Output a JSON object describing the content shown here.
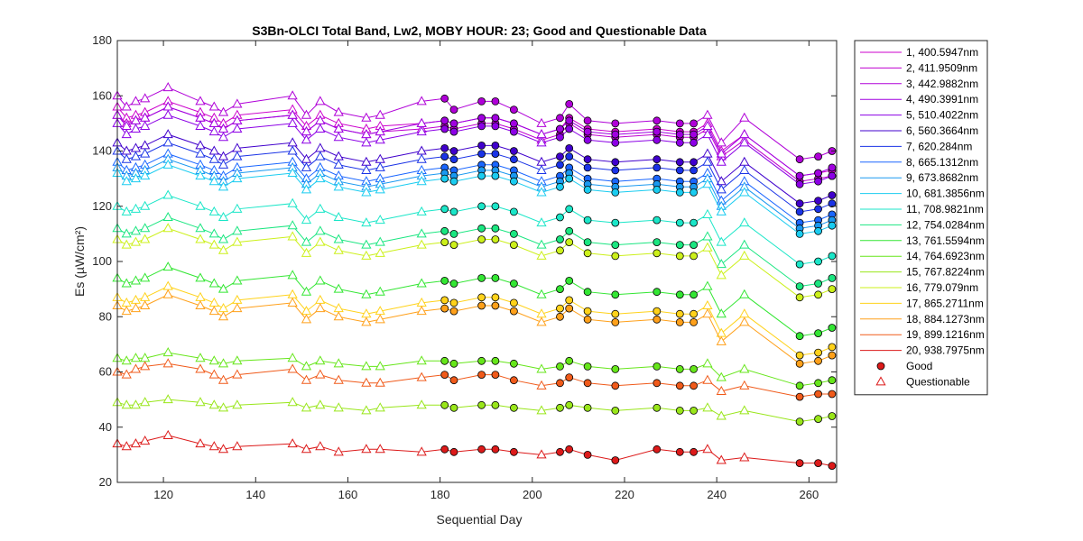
{
  "chart_data": {
    "type": "line",
    "title": "S3Bn-OLCI Total Band,  Lw2, MOBY HOUR: 23;  Good and Questionable Data",
    "xlabel": "Sequential Day",
    "ylabel": "Es (µW/cm²)",
    "xlim": [
      110,
      266
    ],
    "ylim": [
      20,
      180
    ],
    "xticks": [
      120,
      140,
      160,
      180,
      200,
      220,
      240,
      260
    ],
    "yticks": [
      20,
      40,
      60,
      80,
      100,
      120,
      140,
      160,
      180
    ],
    "grid": false,
    "legend_position": "outside-right",
    "marker_legend": [
      {
        "label": "Good",
        "marker": "circle"
      },
      {
        "label": "Questionable",
        "marker": "triangle"
      }
    ],
    "x": [
      110,
      112,
      114,
      116,
      121,
      128,
      131,
      133,
      136,
      148,
      151,
      154,
      158,
      164,
      167,
      176,
      181,
      183,
      189,
      192,
      196,
      202,
      206,
      208,
      212,
      218,
      227,
      232,
      235,
      238,
      241,
      246,
      258,
      262,
      265
    ],
    "quality": [
      "Q",
      "Q",
      "Q",
      "Q",
      "Q",
      "Q",
      "Q",
      "Q",
      "Q",
      "Q",
      "Q",
      "Q",
      "Q",
      "Q",
      "Q",
      "Q",
      "G",
      "G",
      "G",
      "G",
      "G",
      "Q",
      "G",
      "G",
      "G",
      "G",
      "G",
      "G",
      "G",
      "Q",
      "Q",
      "Q",
      "G",
      "G",
      "G"
    ],
    "series": [
      {
        "name": "1, 400.5947nm",
        "color": "#cc00cc",
        "values": [
          156,
          152,
          153,
          154,
          158,
          154,
          152,
          150,
          153,
          155,
          149,
          153,
          150,
          148,
          149,
          150,
          151,
          150,
          152,
          152,
          150,
          146,
          148,
          152,
          148,
          147,
          148,
          147,
          147,
          150,
          140,
          146,
          131,
          132,
          133
        ]
      },
      {
        "name": "2, 411.9509nm",
        "color": "#bf00d0",
        "values": [
          153,
          150,
          151,
          152,
          156,
          152,
          150,
          148,
          151,
          153,
          147,
          151,
          148,
          146,
          147,
          148,
          149,
          148,
          150,
          150,
          148,
          144,
          146,
          150,
          146,
          145,
          146,
          145,
          145,
          148,
          138,
          144,
          129,
          130,
          131
        ]
      },
      {
        "name": "3, 442.9882nm",
        "color": "#b000d8",
        "values": [
          160,
          156,
          158,
          159,
          163,
          158,
          156,
          154,
          157,
          160,
          153,
          158,
          154,
          152,
          153,
          158,
          159,
          155,
          158,
          158,
          155,
          150,
          152,
          157,
          151,
          150,
          151,
          150,
          150,
          153,
          143,
          152,
          137,
          138,
          140
        ]
      },
      {
        "name": "4, 490.3991nm",
        "color": "#a000e0",
        "values": [
          153,
          149,
          151,
          152,
          156,
          152,
          150,
          148,
          151,
          153,
          147,
          151,
          148,
          146,
          147,
          150,
          151,
          150,
          152,
          152,
          150,
          146,
          148,
          151,
          147,
          146,
          147,
          146,
          146,
          149,
          139,
          146,
          131,
          132,
          134
        ]
      },
      {
        "name": "5, 510.4022nm",
        "color": "#8c00e6",
        "values": [
          150,
          146,
          148,
          149,
          153,
          149,
          147,
          145,
          148,
          150,
          144,
          148,
          145,
          143,
          144,
          147,
          148,
          147,
          149,
          149,
          147,
          143,
          145,
          148,
          144,
          143,
          144,
          143,
          143,
          146,
          136,
          143,
          128,
          129,
          131
        ]
      },
      {
        "name": "6, 560.3664nm",
        "color": "#4000cc",
        "values": [
          143,
          140,
          141,
          142,
          146,
          142,
          140,
          138,
          141,
          143,
          137,
          141,
          138,
          136,
          137,
          140,
          141,
          140,
          142,
          142,
          140,
          136,
          138,
          141,
          137,
          136,
          137,
          136,
          136,
          139,
          129,
          136,
          121,
          122,
          124
        ]
      },
      {
        "name": "7,  620.284nm",
        "color": "#1a33e6",
        "values": [
          140,
          137,
          138,
          139,
          143,
          139,
          137,
          135,
          138,
          140,
          134,
          138,
          135,
          133,
          134,
          137,
          138,
          137,
          139,
          139,
          137,
          133,
          135,
          138,
          134,
          133,
          134,
          133,
          133,
          136,
          126,
          133,
          118,
          119,
          121
        ]
      },
      {
        "name": "8, 665.1312nm",
        "color": "#1a66ff",
        "values": [
          136,
          133,
          134,
          135,
          139,
          135,
          133,
          131,
          134,
          136,
          130,
          134,
          131,
          129,
          130,
          133,
          134,
          133,
          135,
          135,
          133,
          129,
          131,
          134,
          130,
          129,
          130,
          129,
          129,
          132,
          122,
          129,
          114,
          115,
          117
        ]
      },
      {
        "name": "9, 673.8682nm",
        "color": "#1a99f0",
        "values": [
          134,
          131,
          132,
          133,
          137,
          133,
          131,
          129,
          132,
          134,
          128,
          132,
          129,
          127,
          128,
          131,
          132,
          131,
          133,
          133,
          131,
          127,
          129,
          132,
          128,
          127,
          128,
          127,
          127,
          130,
          120,
          127,
          112,
          113,
          115
        ]
      },
      {
        "name": "10, 681.3856nm",
        "color": "#1accf0",
        "values": [
          132,
          129,
          130,
          131,
          135,
          131,
          129,
          127,
          130,
          132,
          126,
          130,
          127,
          125,
          126,
          129,
          130,
          129,
          131,
          131,
          129,
          125,
          127,
          130,
          126,
          125,
          126,
          125,
          125,
          128,
          118,
          125,
          110,
          111,
          113
        ]
      },
      {
        "name": "11, 708.9821nm",
        "color": "#1ae6c8",
        "values": [
          120,
          118,
          119,
          120,
          124,
          120,
          118,
          116,
          119,
          121,
          115,
          119,
          116,
          114,
          115,
          118,
          119,
          118,
          120,
          120,
          118,
          114,
          116,
          119,
          115,
          114,
          115,
          114,
          114,
          117,
          107,
          114,
          99,
          100,
          102
        ]
      },
      {
        "name": "12, 754.0284nm",
        "color": "#1ae680",
        "values": [
          112,
          110,
          111,
          112,
          116,
          112,
          110,
          108,
          111,
          113,
          107,
          111,
          108,
          106,
          107,
          110,
          111,
          110,
          112,
          112,
          110,
          106,
          108,
          111,
          107,
          106,
          107,
          106,
          106,
          109,
          99,
          106,
          91,
          92,
          94
        ]
      },
      {
        "name": "13, 761.5594nm",
        "color": "#33e633",
        "values": [
          94,
          92,
          93,
          94,
          98,
          94,
          92,
          90,
          93,
          95,
          89,
          93,
          90,
          88,
          89,
          92,
          93,
          92,
          94,
          94,
          92,
          88,
          90,
          93,
          89,
          88,
          89,
          88,
          88,
          91,
          81,
          88,
          73,
          74,
          76
        ]
      },
      {
        "name": "14, 764.6923nm",
        "color": "#66e61a",
        "values": [
          65,
          64,
          65,
          65,
          67,
          65,
          64,
          63,
          64,
          65,
          62,
          64,
          63,
          62,
          62,
          64,
          64,
          63,
          64,
          64,
          63,
          61,
          62,
          64,
          62,
          61,
          62,
          61,
          61,
          63,
          58,
          61,
          55,
          56,
          57
        ]
      },
      {
        "name": "15, 767.8224nm",
        "color": "#99e61a",
        "values": [
          49,
          48,
          48,
          49,
          50,
          49,
          48,
          47,
          48,
          49,
          47,
          48,
          47,
          46,
          47,
          48,
          48,
          47,
          48,
          48,
          47,
          46,
          47,
          48,
          47,
          46,
          47,
          46,
          46,
          47,
          44,
          46,
          42,
          43,
          44
        ]
      },
      {
        "name": "16,  779.079nm",
        "color": "#ccf01a",
        "values": [
          108,
          106,
          107,
          108,
          112,
          108,
          106,
          104,
          107,
          109,
          103,
          107,
          104,
          102,
          103,
          106,
          107,
          106,
          108,
          108,
          106,
          102,
          104,
          107,
          103,
          102,
          103,
          102,
          102,
          105,
          95,
          102,
          87,
          88,
          90
        ]
      },
      {
        "name": "17, 865.2711nm",
        "color": "#ffd21a",
        "values": [
          87,
          85,
          86,
          87,
          91,
          87,
          85,
          83,
          86,
          88,
          82,
          86,
          83,
          81,
          82,
          85,
          86,
          85,
          87,
          87,
          85,
          81,
          83,
          86,
          82,
          81,
          82,
          81,
          81,
          84,
          74,
          81,
          66,
          67,
          69
        ]
      },
      {
        "name": "18, 884.1273nm",
        "color": "#ffa01a",
        "values": [
          84,
          82,
          83,
          84,
          88,
          84,
          82,
          80,
          83,
          85,
          79,
          83,
          80,
          78,
          79,
          82,
          83,
          82,
          84,
          84,
          82,
          78,
          80,
          83,
          79,
          78,
          79,
          78,
          78,
          81,
          71,
          78,
          63,
          64,
          66
        ]
      },
      {
        "name": "19, 899.1216nm",
        "color": "#f05a1a",
        "values": [
          60,
          59,
          61,
          62,
          63,
          61,
          59,
          57,
          59,
          61,
          57,
          59,
          57,
          56,
          56,
          58,
          59,
          57,
          59,
          59,
          57,
          55,
          56,
          58,
          56,
          55,
          56,
          55,
          55,
          57,
          53,
          55,
          51,
          52,
          52
        ]
      },
      {
        "name": "20, 938.7975nm",
        "color": "#dc1a1a",
        "values": [
          34,
          33,
          34,
          35,
          37,
          34,
          33,
          32,
          33,
          34,
          32,
          33,
          31,
          32,
          32,
          31,
          32,
          31,
          32,
          32,
          31,
          30,
          31,
          32,
          30,
          28,
          32,
          31,
          31,
          32,
          28,
          29,
          27,
          27,
          26
        ]
      }
    ]
  }
}
